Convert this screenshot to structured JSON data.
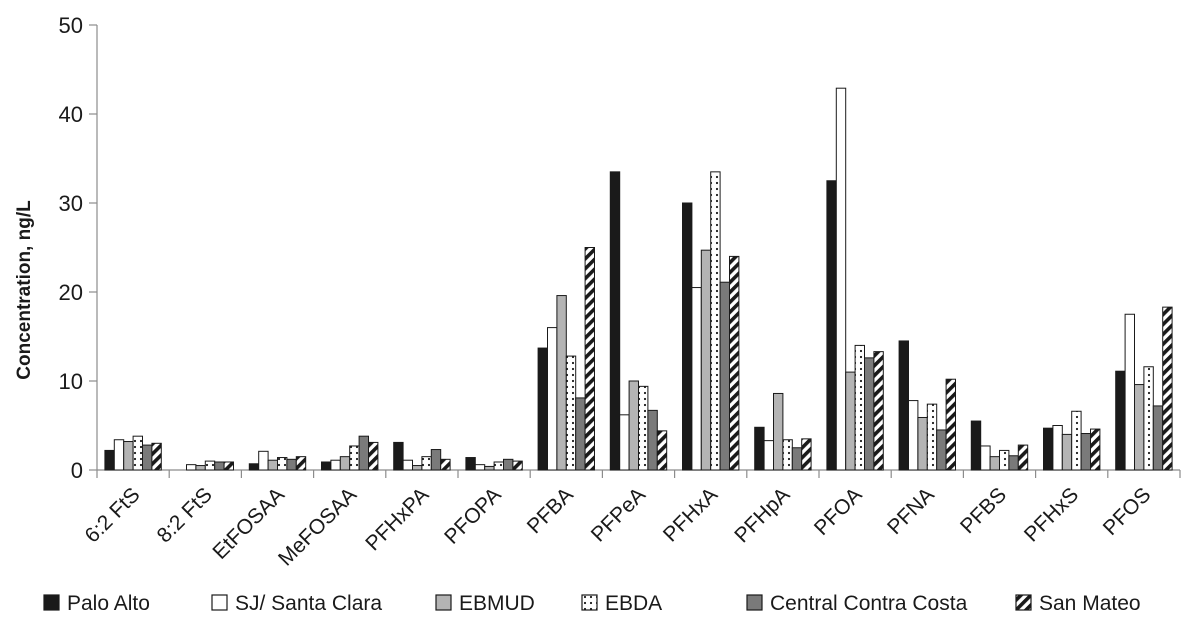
{
  "chart_data": {
    "type": "bar",
    "title": "",
    "xlabel": "",
    "ylabel": "Concentration, ng/L",
    "ylim": [
      0,
      50
    ],
    "yticks": [
      0,
      10,
      20,
      30,
      40,
      50
    ],
    "grid": false,
    "legend_position": "bottom",
    "categories": [
      "6:2 FtS",
      "8:2 FtS",
      "EtFOSAA",
      "MeFOSAA",
      "PFHxPA",
      "PFOPA",
      "PFBA",
      "PFPeA",
      "PFHxA",
      "PFHpA",
      "PFOA",
      "PFNA",
      "PFBS",
      "PFHxS",
      "PFOS"
    ],
    "series": [
      {
        "name": "Palo Alto",
        "pattern": "solid-black",
        "color": "#1a1a1a",
        "values": [
          2.2,
          0,
          0.7,
          0.9,
          3.1,
          1.4,
          13.7,
          33.5,
          30.0,
          4.8,
          32.5,
          14.5,
          5.5,
          4.7,
          11.1
        ]
      },
      {
        "name": "SJ/ Santa Clara",
        "pattern": "white",
        "color": "#ffffff",
        "values": [
          3.4,
          0.6,
          2.1,
          1.1,
          1.1,
          0.6,
          16.0,
          6.2,
          20.5,
          3.3,
          42.9,
          7.8,
          2.7,
          5.0,
          17.5
        ]
      },
      {
        "name": "EBMUD",
        "pattern": "light-gray",
        "color": "#b4b4b4",
        "values": [
          3.2,
          0.5,
          1.1,
          1.5,
          0.5,
          0.4,
          19.6,
          10.0,
          24.7,
          8.6,
          11.0,
          5.9,
          1.5,
          4.0,
          9.6
        ]
      },
      {
        "name": "EBDA",
        "pattern": "dotted",
        "color": "#ffffff",
        "values": [
          3.8,
          1.0,
          1.4,
          2.7,
          1.5,
          0.9,
          12.8,
          9.4,
          33.5,
          3.4,
          14.0,
          7.4,
          2.2,
          6.6,
          11.6
        ]
      },
      {
        "name": "Central Contra Costa",
        "pattern": "dark-gray",
        "color": "#7a7a7a",
        "values": [
          2.8,
          0.9,
          1.2,
          3.8,
          2.3,
          1.2,
          8.1,
          6.7,
          21.1,
          2.5,
          12.6,
          4.5,
          1.6,
          4.1,
          7.2
        ]
      },
      {
        "name": "San Mateo",
        "pattern": "diagonal-hatch",
        "color": "#1a1a1a",
        "values": [
          3.0,
          0.9,
          1.5,
          3.1,
          1.2,
          1.0,
          25.0,
          4.4,
          24.0,
          3.5,
          13.3,
          10.2,
          2.8,
          4.6,
          18.3
        ]
      }
    ]
  }
}
